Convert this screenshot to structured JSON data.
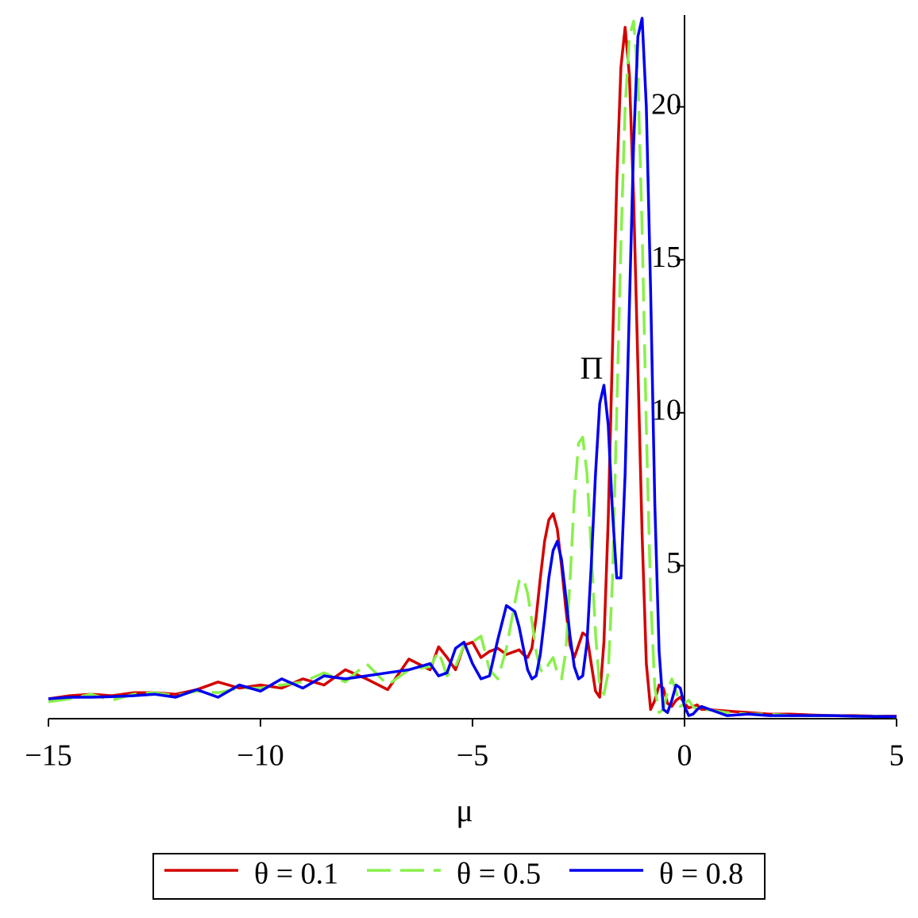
{
  "chart_data": {
    "type": "line",
    "xlabel": "μ",
    "ylabel": "Π",
    "xlim": [
      -15,
      5
    ],
    "ylim": [
      0,
      23
    ],
    "xticks": [
      {
        "value": -15,
        "label": "−15"
      },
      {
        "value": -10,
        "label": "−10"
      },
      {
        "value": -5,
        "label": "−5"
      },
      0,
      5
    ],
    "yticks": [
      5,
      10,
      15,
      20
    ],
    "legend": "bottom",
    "x": [
      -15,
      -14.5,
      -14,
      -13.5,
      -13,
      -12.5,
      -12,
      -11.5,
      -11,
      -10.5,
      -10,
      -9.5,
      -9,
      -8.5,
      -8,
      -7.5,
      -7,
      -6.5,
      -6,
      -5.8,
      -5.6,
      -5.4,
      -5.2,
      -5.0,
      -4.8,
      -4.6,
      -4.4,
      -4.2,
      -4.0,
      -3.9,
      -3.8,
      -3.7,
      -3.6,
      -3.5,
      -3.4,
      -3.3,
      -3.2,
      -3.1,
      -3.0,
      -2.9,
      -2.8,
      -2.7,
      -2.6,
      -2.5,
      -2.4,
      -2.3,
      -2.2,
      -2.1,
      -2.0,
      -1.9,
      -1.8,
      -1.7,
      -1.6,
      -1.5,
      -1.4,
      -1.3,
      -1.2,
      -1.1,
      -1.0,
      -0.9,
      -0.8,
      -0.7,
      -0.6,
      -0.5,
      -0.4,
      -0.3,
      -0.2,
      -0.1,
      0,
      0.1,
      0.2,
      0.3,
      0.4,
      0.5,
      1,
      1.5,
      2,
      2.5,
      3,
      3.5,
      4,
      4.5,
      5
    ],
    "series": [
      {
        "name": "θ = 0.1",
        "color": "#d40000",
        "dash": "solid",
        "values": [
          0.65,
          0.75,
          0.8,
          0.75,
          0.85,
          0.85,
          0.8,
          0.95,
          1.2,
          1.0,
          1.1,
          1.0,
          1.3,
          1.1,
          1.6,
          1.3,
          0.95,
          1.95,
          1.6,
          2.35,
          2.0,
          1.6,
          2.4,
          2.5,
          2.0,
          2.2,
          2.3,
          2.1,
          2.2,
          2.25,
          2.1,
          2.0,
          2.3,
          3.3,
          4.6,
          5.8,
          6.5,
          6.7,
          6.2,
          5.0,
          3.6,
          2.4,
          2.0,
          2.4,
          2.8,
          2.7,
          1.8,
          0.9,
          0.7,
          2.5,
          6.5,
          12.0,
          17.5,
          21.3,
          22.6,
          21.0,
          17.0,
          11.5,
          6.0,
          1.8,
          0.3,
          0.6,
          1.1,
          1.0,
          0.5,
          0.4,
          0.6,
          0.7,
          0.5,
          0.35,
          0.4,
          0.45,
          0.3,
          0.3,
          0.25,
          0.2,
          0.15,
          0.15,
          0.12,
          0.1,
          0.1,
          0.08,
          0.08
        ]
      },
      {
        "name": "θ = 0.5",
        "color": "#88f04a",
        "dash": "dashed",
        "values": [
          0.55,
          0.65,
          0.8,
          0.6,
          0.8,
          0.85,
          0.75,
          0.9,
          0.85,
          1.0,
          1.0,
          1.1,
          1.2,
          1.5,
          1.2,
          1.8,
          1.1,
          1.6,
          1.7,
          2.2,
          1.4,
          1.7,
          2.4,
          2.5,
          2.7,
          1.6,
          1.3,
          2.3,
          3.8,
          4.5,
          4.6,
          4.1,
          3.2,
          2.2,
          1.6,
          1.5,
          1.8,
          2.0,
          1.5,
          1.3,
          2.2,
          4.5,
          7.2,
          9.0,
          9.2,
          8.0,
          5.5,
          2.8,
          1.0,
          0.8,
          1.5,
          4.5,
          10.0,
          15.5,
          20.0,
          22.3,
          22.8,
          21.0,
          16.0,
          9.5,
          4.0,
          1.0,
          0.2,
          0.3,
          0.9,
          1.3,
          0.9,
          0.4,
          0.5,
          0.6,
          0.4,
          0.3,
          0.35,
          0.3,
          0.2,
          0.15,
          0.15,
          0.1,
          0.1,
          0.1,
          0.08,
          0.08,
          0.06
        ]
      },
      {
        "name": "θ = 0.8",
        "color": "#0000ee",
        "dash": "solid",
        "values": [
          0.65,
          0.7,
          0.7,
          0.72,
          0.75,
          0.8,
          0.7,
          0.95,
          0.7,
          1.1,
          0.9,
          1.3,
          1.0,
          1.4,
          1.3,
          1.4,
          1.5,
          1.6,
          1.8,
          1.4,
          1.5,
          2.3,
          2.5,
          1.8,
          1.3,
          1.4,
          2.6,
          3.7,
          3.5,
          3.0,
          2.3,
          1.6,
          1.3,
          1.4,
          2.1,
          3.3,
          4.6,
          5.5,
          5.8,
          5.2,
          4.0,
          2.7,
          1.7,
          1.3,
          1.4,
          2.5,
          5.0,
          8.0,
          10.3,
          10.9,
          9.6,
          6.8,
          4.6,
          4.6,
          8.0,
          13.5,
          18.8,
          22.3,
          22.9,
          20.0,
          14.0,
          7.0,
          2.2,
          0.3,
          0.2,
          0.6,
          1.1,
          1.0,
          0.4,
          0.1,
          0.15,
          0.3,
          0.4,
          0.35,
          0.1,
          0.15,
          0.1,
          0.1,
          0.1,
          0.1,
          0.08,
          0.07,
          0.07
        ]
      }
    ]
  }
}
